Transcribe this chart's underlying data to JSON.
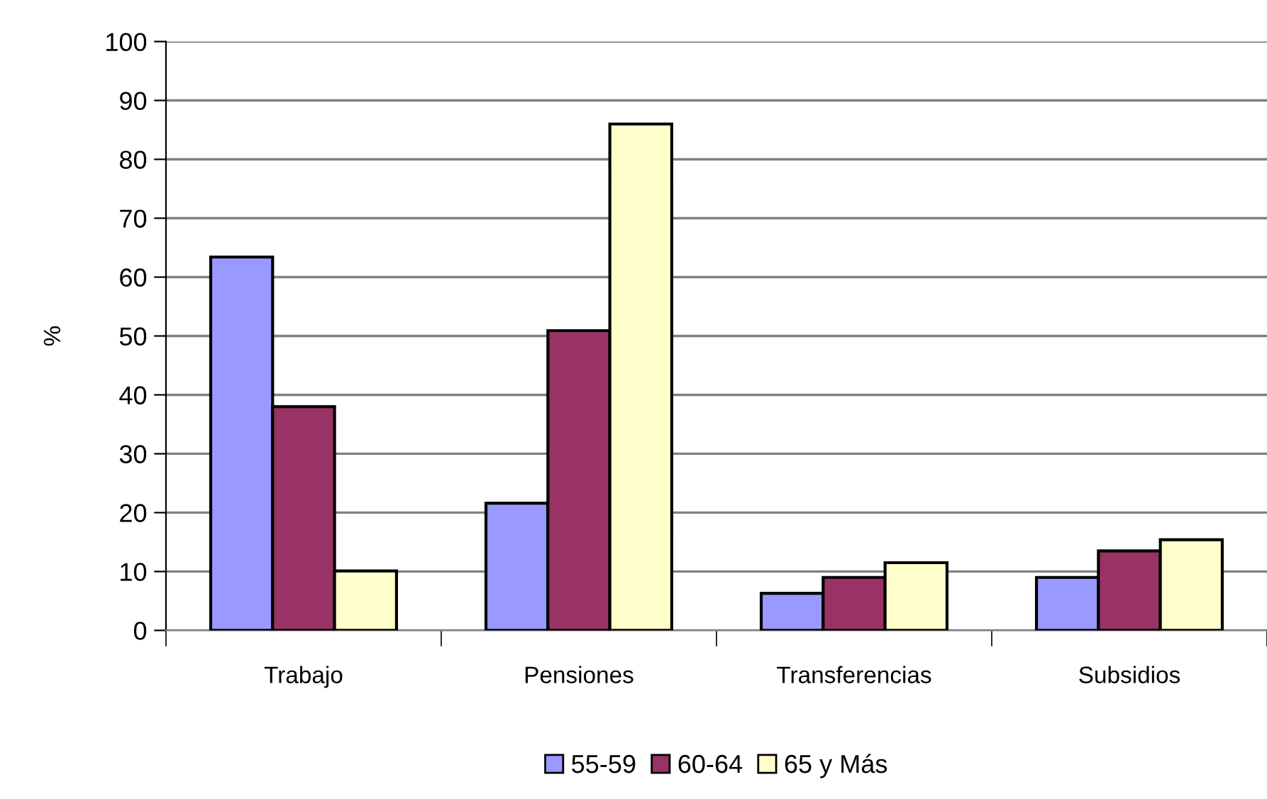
{
  "chart_data": {
    "type": "bar",
    "ylabel": "%",
    "categories": [
      "Trabajo",
      "Pensiones",
      "Transferencias",
      "Subsidios"
    ],
    "series": [
      {
        "name": "55-59",
        "color": "#9999ff",
        "values": [
          63.4,
          21.6,
          6.3,
          9.0
        ]
      },
      {
        "name": "60-64",
        "color": "#993366",
        "values": [
          38.0,
          50.9,
          9.0,
          13.5
        ]
      },
      {
        "name": "65 y Más",
        "color": "#ffffcc",
        "values": [
          10.1,
          86.0,
          11.5,
          15.4
        ]
      }
    ],
    "ylim": [
      0,
      100
    ],
    "yticks": [
      0,
      10,
      20,
      30,
      40,
      50,
      60,
      70,
      80,
      90,
      100
    ],
    "grid": "y",
    "legend": "bottom"
  }
}
